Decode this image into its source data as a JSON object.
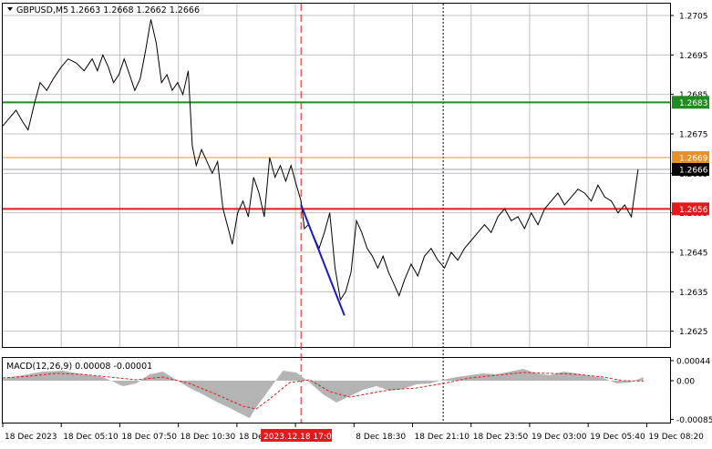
{
  "header": {
    "symbol": "GBPUSD,M5",
    "ohlc": "1.2663 1.2668 1.2662 1.2666"
  },
  "indicator": {
    "label": "MACD(12,26,9) 0.00008 -0.00001"
  },
  "colors": {
    "price_line": "#000000",
    "support_line": "#e31a1c",
    "resistance_green": "#1e8c1e",
    "orange_line": "#e8902a",
    "trend_line": "#1a1acc",
    "macd_hist": "#b4b4b4",
    "macd_signal": "#e31a1c",
    "grid": "#c0c0c0",
    "axis_text": "#000000"
  },
  "chart_data": [
    {
      "type": "line",
      "title": "GBPUSD,M5",
      "x_tick_labels": [
        "18 Dec 2023",
        "18 Dec 05:10",
        "18 Dec 07:50",
        "18 Dec 10:30",
        "18 Dec 13:10",
        "2023.12.18 17:00",
        "8 Dec 18:30",
        "18 Dec 21:10",
        "18 Dec 23:50",
        "19 Dec 03:00",
        "19 Dec 05:40",
        "19 Dec 08:20"
      ],
      "highlighted_x_label": "2023.12.18 17:00",
      "y_ticks": [
        "1.2705",
        "1.2695",
        "1.2685",
        "1.2675",
        "1.2665",
        "1.2655",
        "1.2645",
        "1.2635",
        "1.2625"
      ],
      "ylim": [
        1.2621,
        1.2708
      ],
      "grid": true,
      "levels": [
        {
          "value": 1.2683,
          "label": "1.2683",
          "color": "#1e8c1e"
        },
        {
          "value": 1.2669,
          "label": "1.2669",
          "color": "#e8902a"
        },
        {
          "value": 1.2656,
          "label": "1.2656",
          "color": "#e31a1c"
        },
        {
          "value": 1.2666,
          "label": "1.2666",
          "color": "#000000"
        }
      ],
      "trend_segment": {
        "from": [
          0.447,
          1.2657
        ],
        "to": [
          0.512,
          1.2629
        ]
      },
      "vertical_markers": [
        {
          "x": 0.447,
          "style": "dashed",
          "color": "#e31a1c"
        },
        {
          "x": 0.66,
          "style": "dotted",
          "color": "#000000"
        }
      ],
      "series": [
        {
          "values": [
            [
              0.0,
              1.2677
            ],
            [
              0.01,
              1.2679
            ],
            [
              0.02,
              1.2681
            ],
            [
              0.03,
              1.2678
            ],
            [
              0.038,
              1.2676
            ],
            [
              0.048,
              1.2683
            ],
            [
              0.056,
              1.2688
            ],
            [
              0.066,
              1.2686
            ],
            [
              0.076,
              1.2689
            ],
            [
              0.088,
              1.2692
            ],
            [
              0.098,
              1.2694
            ],
            [
              0.11,
              1.2693
            ],
            [
              0.122,
              1.2691
            ],
            [
              0.134,
              1.2694
            ],
            [
              0.142,
              1.2691
            ],
            [
              0.15,
              1.2695
            ],
            [
              0.158,
              1.2692
            ],
            [
              0.166,
              1.2688
            ],
            [
              0.174,
              1.269
            ],
            [
              0.182,
              1.2694
            ],
            [
              0.19,
              1.269
            ],
            [
              0.198,
              1.2686
            ],
            [
              0.206,
              1.2689
            ],
            [
              0.214,
              1.2696
            ],
            [
              0.222,
              1.2704
            ],
            [
              0.23,
              1.2698
            ],
            [
              0.238,
              1.2688
            ],
            [
              0.246,
              1.269
            ],
            [
              0.254,
              1.2686
            ],
            [
              0.262,
              1.2688
            ],
            [
              0.27,
              1.2685
            ],
            [
              0.278,
              1.2691
            ],
            [
              0.284,
              1.2672
            ],
            [
              0.29,
              1.2667
            ],
            [
              0.298,
              1.2671
            ],
            [
              0.306,
              1.2668
            ],
            [
              0.314,
              1.2665
            ],
            [
              0.322,
              1.2668
            ],
            [
              0.33,
              1.2656
            ],
            [
              0.338,
              1.2651
            ],
            [
              0.344,
              1.2647
            ],
            [
              0.352,
              1.2655
            ],
            [
              0.36,
              1.2658
            ],
            [
              0.368,
              1.2654
            ],
            [
              0.376,
              1.2664
            ],
            [
              0.384,
              1.266
            ],
            [
              0.392,
              1.2654
            ],
            [
              0.4,
              1.2669
            ],
            [
              0.408,
              1.2664
            ],
            [
              0.416,
              1.2667
            ],
            [
              0.424,
              1.2663
            ],
            [
              0.432,
              1.2667
            ],
            [
              0.44,
              1.2662
            ],
            [
              0.447,
              1.2658
            ],
            [
              0.452,
              1.2651
            ],
            [
              0.458,
              1.2652
            ],
            [
              0.466,
              1.2649
            ],
            [
              0.474,
              1.2646
            ],
            [
              0.482,
              1.265
            ],
            [
              0.49,
              1.2655
            ],
            [
              0.498,
              1.2641
            ],
            [
              0.506,
              1.2633
            ],
            [
              0.514,
              1.2635
            ],
            [
              0.522,
              1.264
            ],
            [
              0.53,
              1.2653
            ],
            [
              0.538,
              1.265
            ],
            [
              0.546,
              1.2646
            ],
            [
              0.554,
              1.2644
            ],
            [
              0.562,
              1.2641
            ],
            [
              0.57,
              1.2644
            ],
            [
              0.578,
              1.264
            ],
            [
              0.586,
              1.2637
            ],
            [
              0.594,
              1.2634
            ],
            [
              0.602,
              1.2638
            ],
            [
              0.612,
              1.2642
            ],
            [
              0.622,
              1.2639
            ],
            [
              0.632,
              1.2644
            ],
            [
              0.642,
              1.2646
            ],
            [
              0.652,
              1.2643
            ],
            [
              0.662,
              1.2641
            ],
            [
              0.672,
              1.2645
            ],
            [
              0.682,
              1.2643
            ],
            [
              0.692,
              1.2646
            ],
            [
              0.702,
              1.2648
            ],
            [
              0.712,
              1.265
            ],
            [
              0.722,
              1.2652
            ],
            [
              0.732,
              1.265
            ],
            [
              0.742,
              1.2654
            ],
            [
              0.752,
              1.2656
            ],
            [
              0.762,
              1.2653
            ],
            [
              0.772,
              1.2654
            ],
            [
              0.782,
              1.2651
            ],
            [
              0.792,
              1.2655
            ],
            [
              0.802,
              1.2652
            ],
            [
              0.812,
              1.2656
            ],
            [
              0.822,
              1.2658
            ],
            [
              0.832,
              1.266
            ],
            [
              0.842,
              1.2657
            ],
            [
              0.852,
              1.2659
            ],
            [
              0.862,
              1.2661
            ],
            [
              0.872,
              1.266
            ],
            [
              0.882,
              1.2658
            ],
            [
              0.892,
              1.2662
            ],
            [
              0.902,
              1.2659
            ],
            [
              0.912,
              1.2658
            ],
            [
              0.922,
              1.2655
            ],
            [
              0.932,
              1.2657
            ],
            [
              0.942,
              1.2654
            ],
            [
              0.952,
              1.2666
            ]
          ]
        }
      ]
    },
    {
      "type": "area",
      "title": "MACD(12,26,9) 0.00008 -0.00001",
      "y_ticks": [
        "0.00044",
        "0.00",
        "-0.00085"
      ],
      "ylim": [
        -0.00092,
        0.0005
      ],
      "grid": false,
      "series": [
        {
          "style": "histogram",
          "values": [
            [
              0.0,
              4e-05
            ],
            [
              0.03,
              0.00012
            ],
            [
              0.06,
              0.0002
            ],
            [
              0.09,
              0.00022
            ],
            [
              0.12,
              0.00014
            ],
            [
              0.15,
              8e-05
            ],
            [
              0.18,
              -0.00012
            ],
            [
              0.2,
              -6e-05
            ],
            [
              0.22,
              0.00014
            ],
            [
              0.24,
              0.0002
            ],
            [
              0.26,
              2e-05
            ],
            [
              0.28,
              -0.00016
            ],
            [
              0.3,
              -0.0003
            ],
            [
              0.32,
              -0.00046
            ],
            [
              0.34,
              -0.0006
            ],
            [
              0.36,
              -0.00075
            ],
            [
              0.37,
              -0.00082
            ],
            [
              0.38,
              -0.00058
            ],
            [
              0.4,
              -0.00018
            ],
            [
              0.42,
              0.00022
            ],
            [
              0.44,
              0.00018
            ],
            [
              0.46,
              -4e-05
            ],
            [
              0.48,
              -0.0003
            ],
            [
              0.5,
              -0.00048
            ],
            [
              0.52,
              -0.00034
            ],
            [
              0.54,
              -0.0002
            ],
            [
              0.56,
              -0.00012
            ],
            [
              0.58,
              -0.00022
            ],
            [
              0.6,
              -0.00018
            ],
            [
              0.62,
              -8e-05
            ],
            [
              0.64,
              -6e-05
            ],
            [
              0.66,
              2e-05
            ],
            [
              0.68,
              8e-05
            ],
            [
              0.7,
              0.00012
            ],
            [
              0.72,
              0.00016
            ],
            [
              0.74,
              0.00014
            ],
            [
              0.76,
              0.0002
            ],
            [
              0.78,
              0.00026
            ],
            [
              0.8,
              0.00016
            ],
            [
              0.82,
              0.00012
            ],
            [
              0.84,
              0.0002
            ],
            [
              0.86,
              0.00016
            ],
            [
              0.88,
              0.0001
            ],
            [
              0.9,
              6e-05
            ],
            [
              0.92,
              -6e-05
            ],
            [
              0.94,
              -4e-05
            ],
            [
              0.96,
              8e-05
            ]
          ]
        },
        {
          "style": "signal-dashed",
          "values": [
            [
              0.0,
              6e-05
            ],
            [
              0.04,
              0.0001
            ],
            [
              0.08,
              0.00016
            ],
            [
              0.12,
              0.00014
            ],
            [
              0.16,
              8e-05
            ],
            [
              0.2,
              2e-05
            ],
            [
              0.24,
              8e-05
            ],
            [
              0.28,
              -6e-05
            ],
            [
              0.32,
              -0.0003
            ],
            [
              0.36,
              -0.00056
            ],
            [
              0.38,
              -0.00062
            ],
            [
              0.4,
              -0.0004
            ],
            [
              0.43,
              -4e-05
            ],
            [
              0.46,
              2e-05
            ],
            [
              0.49,
              -0.00024
            ],
            [
              0.52,
              -0.00036
            ],
            [
              0.55,
              -0.00028
            ],
            [
              0.58,
              -0.0002
            ],
            [
              0.62,
              -0.00016
            ],
            [
              0.66,
              -6e-05
            ],
            [
              0.7,
              6e-05
            ],
            [
              0.74,
              0.00012
            ],
            [
              0.78,
              0.00018
            ],
            [
              0.82,
              0.00016
            ],
            [
              0.86,
              0.00014
            ],
            [
              0.9,
              8e-05
            ],
            [
              0.93,
              0.0
            ],
            [
              0.96,
              -1e-05
            ]
          ]
        }
      ]
    }
  ]
}
